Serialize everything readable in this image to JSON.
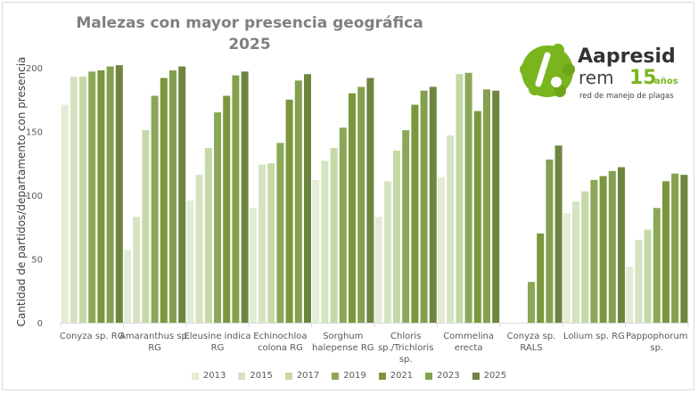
{
  "chart_data": {
    "type": "bar",
    "title": "Malezas con mayor presencia geográfica",
    "subtitle": "2025",
    "xlabel": "",
    "ylabel": "Cantidad de partidos/departamento con presencia",
    "ylim": [
      0,
      200
    ],
    "yticks": [
      0,
      50,
      100,
      150,
      200
    ],
    "grid": false,
    "legend": "bottom",
    "categories": [
      "Conyza sp. RG",
      "Amaranthus sp. RG",
      "Eleusine indica RG",
      "Echinochloa colona RG",
      "Sorghum halepense RG",
      "Chloris sp./Trichloris sp.",
      "Commelina erecta",
      "Conyza sp. RALS",
      "Lolium sp. RG",
      "Pappophorum sp."
    ],
    "category_lines": [
      [
        "Conyza sp. RG"
      ],
      [
        "Amaranthus sp.",
        "RG"
      ],
      [
        "Eleusine indica",
        "RG"
      ],
      [
        "Echinochloa",
        "colona RG"
      ],
      [
        "Sorghum",
        "halepense RG"
      ],
      [
        "Chloris",
        "sp./Trichloris",
        "sp."
      ],
      [
        "Commelina",
        "erecta"
      ],
      [
        "Conyza sp.",
        "RALS"
      ],
      [
        "Lolium sp. RG"
      ],
      [
        "Pappophorum",
        "sp."
      ]
    ],
    "series": [
      {
        "name": "2013",
        "color": "#e3ecd5",
        "values": [
          171,
          57,
          96,
          90,
          112,
          83,
          114,
          null,
          86,
          44
        ]
      },
      {
        "name": "2015",
        "color": "#d5e3c0",
        "values": [
          193,
          83,
          116,
          124,
          127,
          111,
          147,
          null,
          95,
          65
        ]
      },
      {
        "name": "2017",
        "color": "#c5d9a6",
        "values": [
          193,
          151,
          137,
          125,
          137,
          135,
          195,
          null,
          103,
          73
        ]
      },
      {
        "name": "2019",
        "color": "#8aa857",
        "values": [
          197,
          178,
          165,
          141,
          153,
          151,
          196,
          32,
          112,
          90
        ]
      },
      {
        "name": "2021",
        "color": "#7a973b",
        "values": [
          198,
          192,
          178,
          175,
          180,
          171,
          166,
          70,
          115,
          111
        ]
      },
      {
        "name": "2023",
        "color": "#84a04e",
        "values": [
          201,
          198,
          194,
          190,
          185,
          182,
          183,
          128,
          119,
          117
        ]
      },
      {
        "name": "2025",
        "color": "#6e8540",
        "values": [
          202,
          201,
          197,
          195,
          192,
          185,
          182,
          139,
          122,
          116
        ]
      }
    ]
  },
  "logo": {
    "brand": "Aapresid",
    "sub": "rem",
    "anniversary": "15",
    "anniversary_suffix": "años",
    "tagline": "red de manejo de plagas",
    "color": "#7ab51d"
  }
}
